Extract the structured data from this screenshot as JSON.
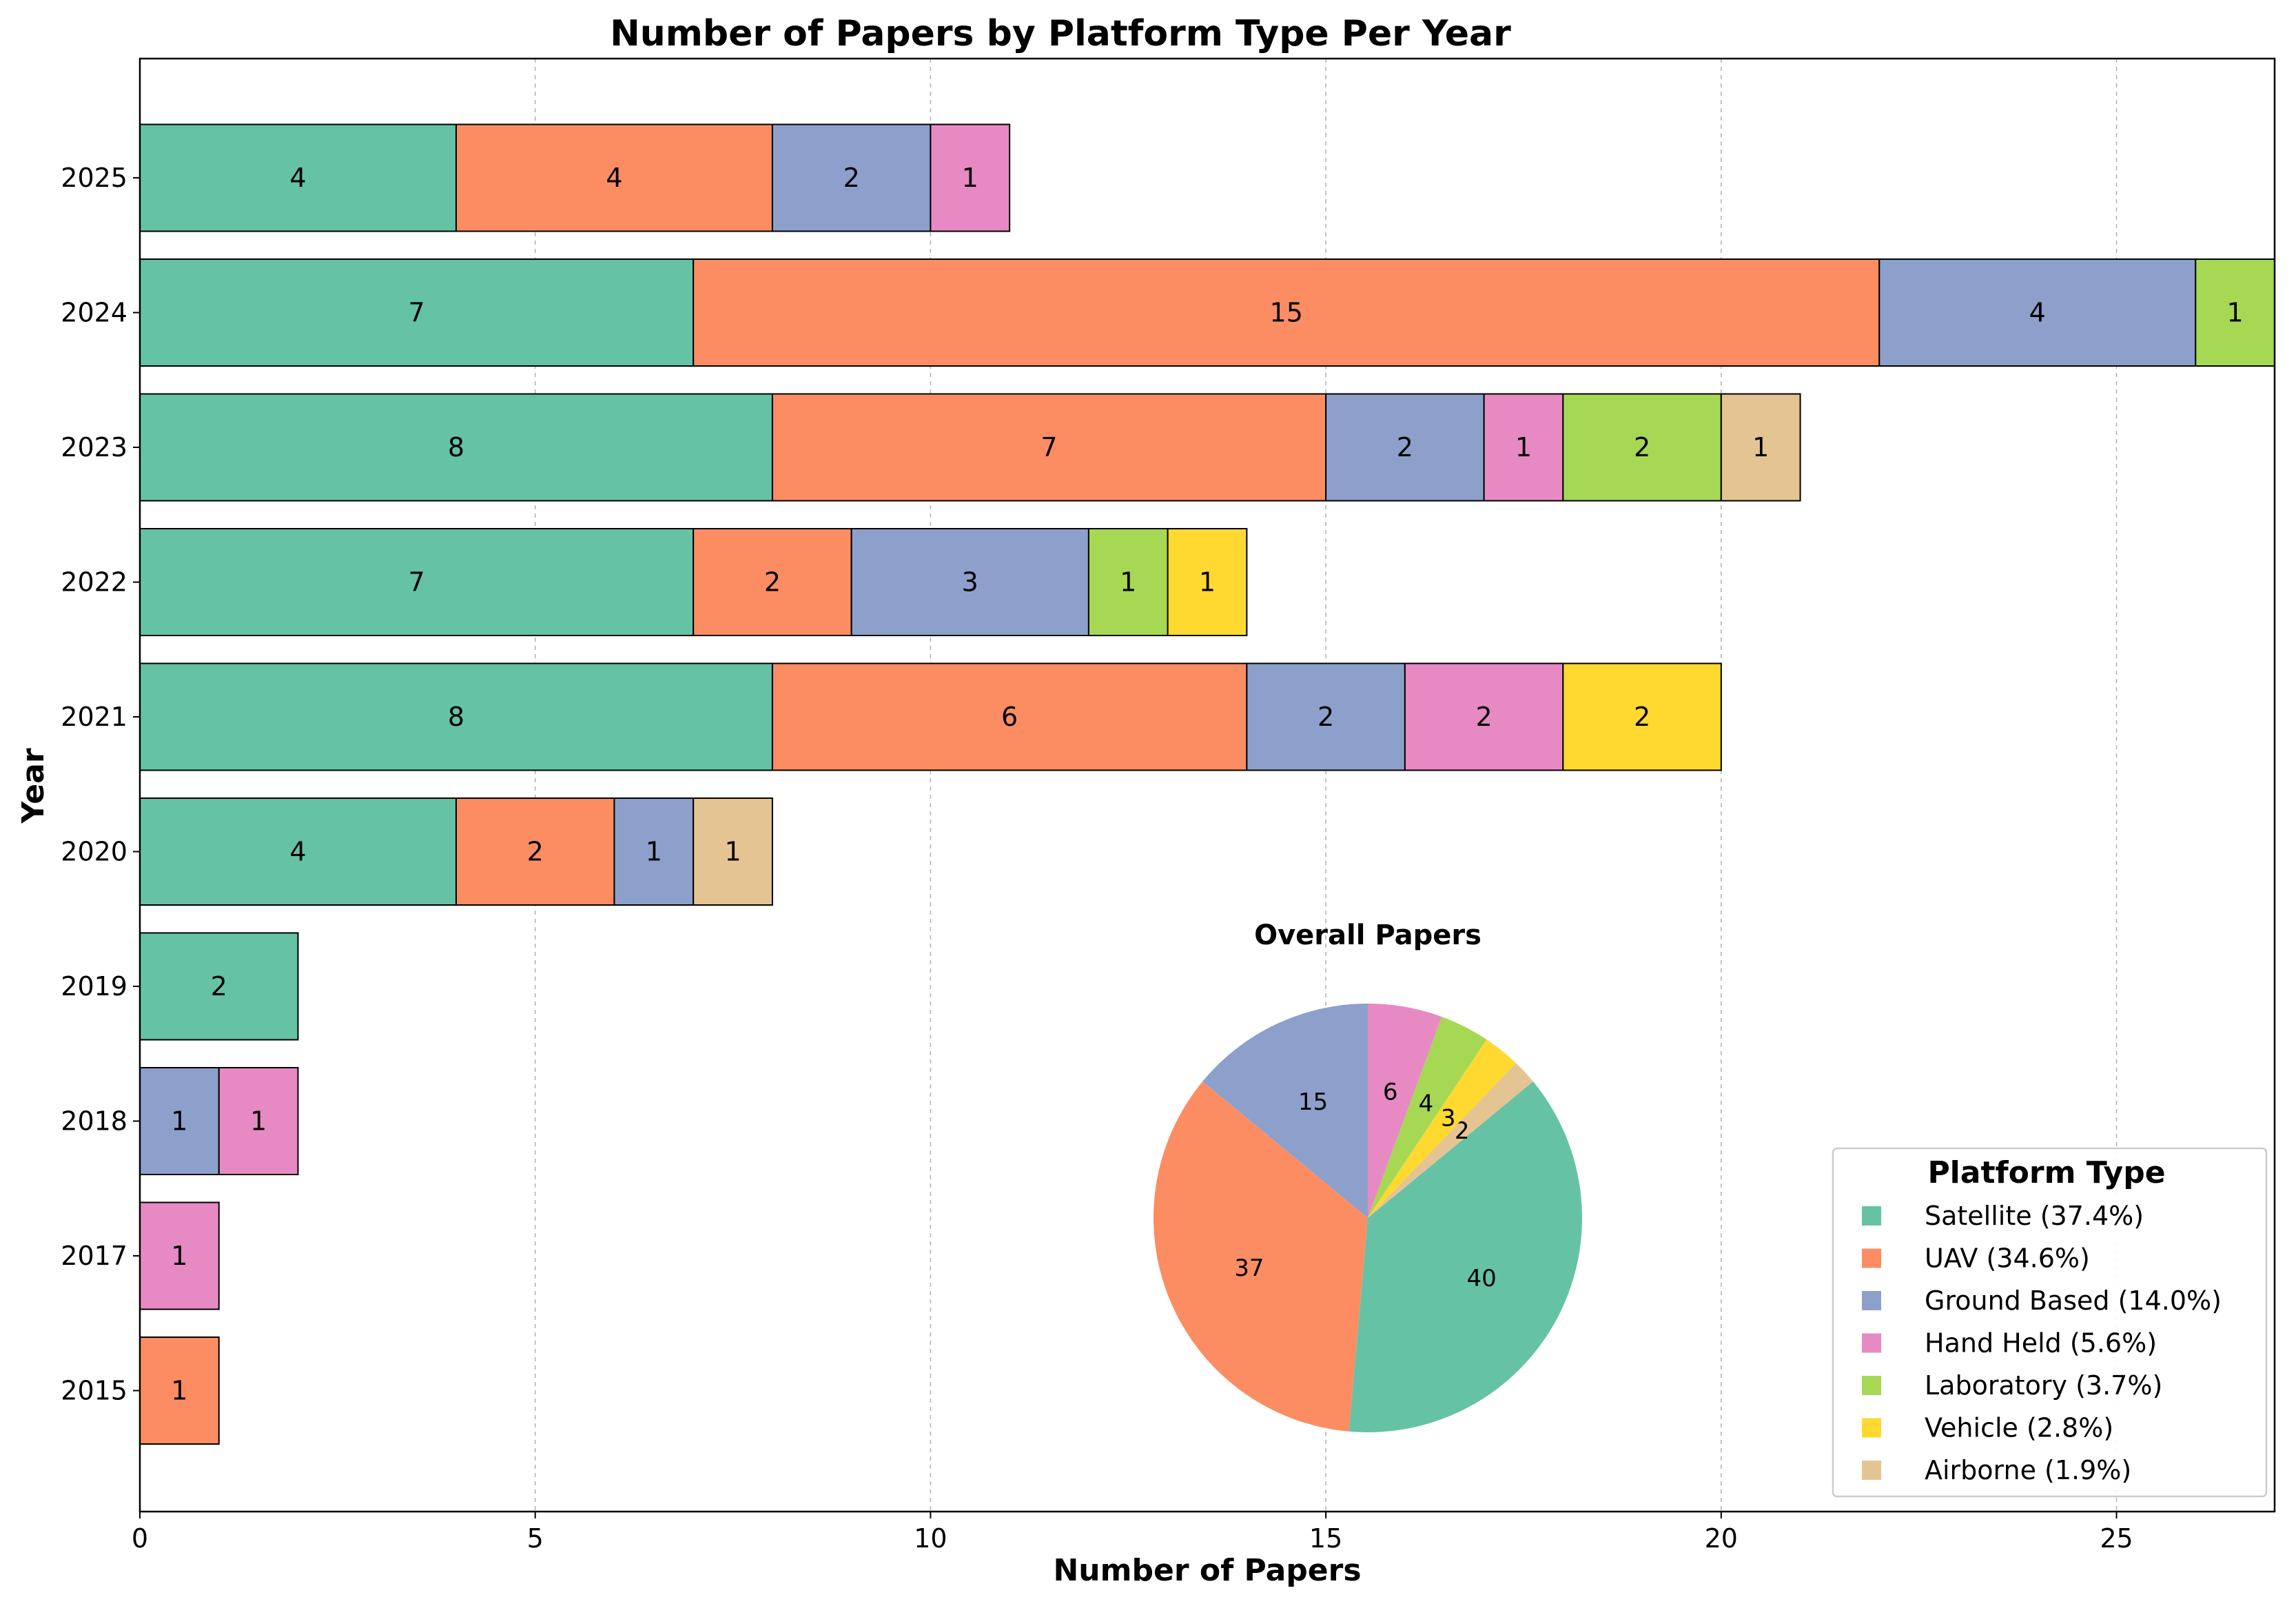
{
  "chart_data": {
    "type": "bar",
    "orientation": "horizontal",
    "stacked": true,
    "title": "Number of Papers by Platform Type Per Year",
    "xlabel": "Number of Papers",
    "ylabel": "Year",
    "xlim": [
      0,
      27
    ],
    "xticks": [
      0,
      5,
      10,
      15,
      20,
      25
    ],
    "grid": "vertical dashed",
    "categories": [
      "2025",
      "2024",
      "2023",
      "2022",
      "2021",
      "2020",
      "2019",
      "2018",
      "2017",
      "2015"
    ],
    "series": [
      {
        "name": "Satellite",
        "color": "#66c2a5",
        "values": [
          4,
          7,
          8,
          7,
          8,
          4,
          2,
          0,
          0,
          0
        ]
      },
      {
        "name": "UAV",
        "color": "#fc8d62",
        "values": [
          4,
          15,
          7,
          2,
          6,
          2,
          0,
          0,
          0,
          1
        ]
      },
      {
        "name": "Ground Based",
        "color": "#8da0cb",
        "values": [
          2,
          4,
          2,
          3,
          2,
          1,
          0,
          1,
          0,
          0
        ]
      },
      {
        "name": "Hand Held",
        "color": "#e78ac3",
        "values": [
          1,
          0,
          1,
          0,
          2,
          0,
          0,
          1,
          1,
          0
        ]
      },
      {
        "name": "Laboratory",
        "color": "#a6d854",
        "values": [
          0,
          1,
          2,
          1,
          0,
          0,
          0,
          0,
          0,
          0
        ]
      },
      {
        "name": "Vehicle",
        "color": "#ffd92f",
        "values": [
          0,
          0,
          0,
          1,
          2,
          0,
          0,
          0,
          0,
          0
        ]
      },
      {
        "name": "Airborne",
        "color": "#e5c494",
        "values": [
          0,
          0,
          1,
          0,
          0,
          1,
          0,
          0,
          0,
          0
        ]
      }
    ],
    "pie": {
      "title": "Overall Papers",
      "slices": [
        {
          "name": "Ground Based",
          "value": 15,
          "color": "#8da0cb"
        },
        {
          "name": "UAV",
          "value": 37,
          "color": "#fc8d62"
        },
        {
          "name": "Satellite",
          "value": 40,
          "color": "#66c2a5"
        },
        {
          "name": "Airborne",
          "value": 2,
          "color": "#e5c494"
        },
        {
          "name": "Vehicle",
          "value": 3,
          "color": "#ffd92f"
        },
        {
          "name": "Laboratory",
          "value": 4,
          "color": "#a6d854"
        },
        {
          "name": "Hand Held",
          "value": 6,
          "color": "#e78ac3"
        }
      ]
    },
    "legend": {
      "title": "Platform Type",
      "position": "bottom-right",
      "entries": [
        {
          "label": "Satellite (37.4%)",
          "color": "#66c2a5"
        },
        {
          "label": "UAV (34.6%)",
          "color": "#fc8d62"
        },
        {
          "label": "Ground Based (14.0%)",
          "color": "#8da0cb"
        },
        {
          "label": "Hand Held (5.6%)",
          "color": "#e78ac3"
        },
        {
          "label": "Laboratory (3.7%)",
          "color": "#a6d854"
        },
        {
          "label": "Vehicle (2.8%)",
          "color": "#ffd92f"
        },
        {
          "label": "Airborne (1.9%)",
          "color": "#e5c494"
        }
      ]
    }
  }
}
